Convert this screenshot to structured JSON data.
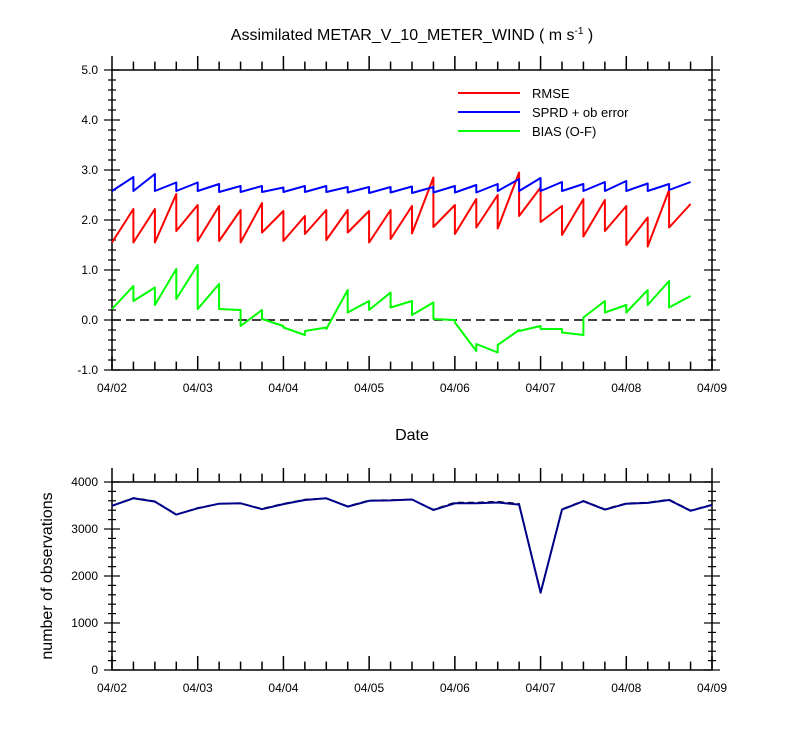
{
  "chart_data": [
    {
      "type": "line",
      "title_main": "Assimilated METAR_V_10_METER_WIND ( m s",
      "title_sup": "-1",
      "title_end": " )",
      "xlabel": "Date",
      "ylabel": "",
      "ylim": [
        -1.0,
        5.0
      ],
      "yticks": [
        "-1.0",
        "0.0",
        "1.0",
        "2.0",
        "3.0",
        "4.0",
        "5.0"
      ],
      "xlim": [
        0,
        7
      ],
      "xticks": [
        "04/02",
        "04/03",
        "04/04",
        "04/05",
        "04/06",
        "04/07",
        "04/08",
        "04/09"
      ],
      "legend_position": "top-right",
      "reference_line": 0.0,
      "series": [
        {
          "name": "RMSE",
          "color": "#ff0000",
          "points": [
            [
              0,
              1.55
            ],
            [
              0.25,
              2.22
            ],
            [
              0.25,
              1.55
            ],
            [
              0.5,
              2.22
            ],
            [
              0.5,
              1.55
            ],
            [
              0.75,
              2.52
            ],
            [
              0.75,
              1.78
            ],
            [
              1.0,
              2.3
            ],
            [
              1.0,
              1.58
            ],
            [
              1.25,
              2.28
            ],
            [
              1.25,
              1.58
            ],
            [
              1.5,
              2.2
            ],
            [
              1.5,
              1.55
            ],
            [
              1.75,
              2.34
            ],
            [
              1.75,
              1.75
            ],
            [
              2.0,
              2.18
            ],
            [
              2.0,
              1.58
            ],
            [
              2.25,
              2.08
            ],
            [
              2.25,
              1.72
            ],
            [
              2.5,
              2.2
            ],
            [
              2.5,
              1.6
            ],
            [
              2.75,
              2.2
            ],
            [
              2.75,
              1.75
            ],
            [
              3.0,
              2.18
            ],
            [
              3.0,
              1.55
            ],
            [
              3.25,
              2.2
            ],
            [
              3.25,
              1.62
            ],
            [
              3.5,
              2.28
            ],
            [
              3.5,
              1.73
            ],
            [
              3.75,
              2.85
            ],
            [
              3.75,
              1.86
            ],
            [
              4.0,
              2.3
            ],
            [
              4.0,
              1.72
            ],
            [
              4.25,
              2.42
            ],
            [
              4.25,
              1.85
            ],
            [
              4.5,
              2.5
            ],
            [
              4.5,
              1.83
            ],
            [
              4.75,
              2.95
            ],
            [
              4.75,
              2.08
            ],
            [
              5.0,
              2.65
            ],
            [
              5.0,
              1.96
            ],
            [
              5.25,
              2.28
            ],
            [
              5.25,
              1.7
            ],
            [
              5.5,
              2.42
            ],
            [
              5.5,
              1.67
            ],
            [
              5.75,
              2.4
            ],
            [
              5.75,
              1.78
            ],
            [
              6.0,
              2.28
            ],
            [
              6.0,
              1.5
            ],
            [
              6.25,
              2.05
            ],
            [
              6.25,
              1.47
            ],
            [
              6.5,
              2.6
            ],
            [
              6.5,
              1.85
            ],
            [
              6.75,
              2.32
            ]
          ]
        },
        {
          "name": "SPRD + ob error",
          "color": "#0000ff",
          "points": [
            [
              0,
              2.58
            ],
            [
              0.25,
              2.86
            ],
            [
              0.25,
              2.58
            ],
            [
              0.5,
              2.92
            ],
            [
              0.5,
              2.58
            ],
            [
              0.75,
              2.75
            ],
            [
              0.75,
              2.58
            ],
            [
              1.0,
              2.75
            ],
            [
              1.0,
              2.58
            ],
            [
              1.25,
              2.72
            ],
            [
              1.25,
              2.56
            ],
            [
              1.5,
              2.68
            ],
            [
              1.5,
              2.56
            ],
            [
              1.75,
              2.68
            ],
            [
              1.75,
              2.56
            ],
            [
              2.0,
              2.65
            ],
            [
              2.0,
              2.56
            ],
            [
              2.25,
              2.68
            ],
            [
              2.25,
              2.56
            ],
            [
              2.5,
              2.68
            ],
            [
              2.5,
              2.56
            ],
            [
              2.75,
              2.66
            ],
            [
              2.75,
              2.55
            ],
            [
              3.0,
              2.66
            ],
            [
              3.0,
              2.54
            ],
            [
              3.25,
              2.66
            ],
            [
              3.25,
              2.55
            ],
            [
              3.5,
              2.67
            ],
            [
              3.5,
              2.54
            ],
            [
              3.75,
              2.66
            ],
            [
              3.75,
              2.55
            ],
            [
              4.0,
              2.68
            ],
            [
              4.0,
              2.55
            ],
            [
              4.25,
              2.7
            ],
            [
              4.25,
              2.55
            ],
            [
              4.5,
              2.72
            ],
            [
              4.5,
              2.58
            ],
            [
              4.75,
              2.82
            ],
            [
              4.75,
              2.58
            ],
            [
              5.0,
              2.84
            ],
            [
              5.0,
              2.58
            ],
            [
              5.25,
              2.76
            ],
            [
              5.25,
              2.58
            ],
            [
              5.5,
              2.72
            ],
            [
              5.5,
              2.58
            ],
            [
              5.75,
              2.76
            ],
            [
              5.75,
              2.58
            ],
            [
              6.0,
              2.78
            ],
            [
              6.0,
              2.58
            ],
            [
              6.25,
              2.73
            ],
            [
              6.25,
              2.58
            ],
            [
              6.5,
              2.72
            ],
            [
              6.5,
              2.6
            ],
            [
              6.75,
              2.76
            ]
          ]
        },
        {
          "name": "BIAS (O-F)",
          "color": "#00ff00",
          "points": [
            [
              0,
              0.22
            ],
            [
              0.25,
              0.68
            ],
            [
              0.25,
              0.38
            ],
            [
              0.5,
              0.65
            ],
            [
              0.5,
              0.3
            ],
            [
              0.75,
              1.02
            ],
            [
              0.75,
              0.42
            ],
            [
              1.0,
              1.1
            ],
            [
              1.0,
              0.22
            ],
            [
              1.25,
              0.72
            ],
            [
              1.25,
              0.22
            ],
            [
              1.5,
              0.2
            ],
            [
              1.5,
              -0.12
            ],
            [
              1.75,
              0.2
            ],
            [
              1.75,
              0.02
            ],
            [
              2.0,
              -0.12
            ],
            [
              2.0,
              -0.15
            ],
            [
              2.25,
              -0.3
            ],
            [
              2.25,
              -0.22
            ],
            [
              2.5,
              -0.15
            ],
            [
              2.5,
              -0.18
            ],
            [
              2.75,
              0.6
            ],
            [
              2.75,
              0.15
            ],
            [
              3.0,
              0.38
            ],
            [
              3.0,
              0.2
            ],
            [
              3.25,
              0.55
            ],
            [
              3.25,
              0.25
            ],
            [
              3.5,
              0.38
            ],
            [
              3.5,
              0.1
            ],
            [
              3.75,
              0.35
            ],
            [
              3.75,
              0.02
            ],
            [
              4.0,
              0.0
            ],
            [
              4.0,
              -0.05
            ],
            [
              4.25,
              -0.62
            ],
            [
              4.25,
              -0.48
            ],
            [
              4.5,
              -0.65
            ],
            [
              4.5,
              -0.5
            ],
            [
              4.75,
              -0.2
            ],
            [
              4.75,
              -0.22
            ],
            [
              5.0,
              -0.12
            ],
            [
              5.0,
              -0.18
            ],
            [
              5.25,
              -0.18
            ],
            [
              5.25,
              -0.25
            ],
            [
              5.5,
              -0.3
            ],
            [
              5.5,
              0.05
            ],
            [
              5.75,
              0.38
            ],
            [
              5.75,
              0.15
            ],
            [
              6.0,
              0.3
            ],
            [
              6.0,
              0.15
            ],
            [
              6.25,
              0.6
            ],
            [
              6.25,
              0.3
            ],
            [
              6.5,
              0.78
            ],
            [
              6.5,
              0.25
            ],
            [
              6.75,
              0.48
            ]
          ]
        }
      ]
    },
    {
      "type": "line",
      "title": "",
      "xlabel": "",
      "ylabel": "number of observations",
      "ylim": [
        0,
        4500
      ],
      "yticks": [
        "0",
        "1000",
        "2000",
        "3000",
        "4000"
      ],
      "xlim": [
        0,
        7
      ],
      "xticks": [
        "04/02",
        "04/03",
        "04/04",
        "04/05",
        "04/06",
        "04/07",
        "04/08",
        "04/09"
      ],
      "series": [
        {
          "name": "",
          "color": "#000000",
          "dash": true,
          "x": [
            0,
            0.25,
            0.5,
            0.75,
            1.0,
            1.25,
            1.5,
            1.75,
            2.0,
            2.25,
            2.5,
            2.75,
            3.0,
            3.25,
            3.5,
            3.75,
            4.0,
            4.25,
            4.5,
            4.75,
            5.0,
            5.25,
            5.5,
            5.75,
            6.0,
            6.25,
            6.5,
            6.75,
            7.0
          ],
          "values": [
            3930,
            4120,
            4040,
            3720,
            3880,
            3980,
            3990,
            3860,
            3980,
            4080,
            4110,
            3920,
            4060,
            4070,
            4080,
            3840,
            4010,
            4010,
            4030,
            3980,
            1860,
            3850,
            4050,
            3850,
            3990,
            4010,
            4080,
            3820,
            3960
          ]
        },
        {
          "name": "",
          "color": "#00008b",
          "dash": false,
          "x": [
            0,
            0.25,
            0.5,
            0.75,
            1.0,
            1.25,
            1.5,
            1.75,
            2.0,
            2.25,
            2.5,
            2.75,
            3.0,
            3.25,
            3.5,
            3.75,
            4.0,
            4.25,
            4.5,
            4.75,
            5.0,
            5.25,
            5.5,
            5.75,
            6.0,
            6.25,
            6.5,
            6.75,
            7.0
          ],
          "values": [
            3930,
            4110,
            4030,
            3720,
            3870,
            3980,
            3990,
            3850,
            3970,
            4070,
            4110,
            3910,
            4050,
            4060,
            4080,
            3830,
            3990,
            3990,
            4010,
            3960,
            1850,
            3840,
            4040,
            3840,
            3980,
            4000,
            4070,
            3810,
            3950
          ]
        }
      ]
    }
  ]
}
